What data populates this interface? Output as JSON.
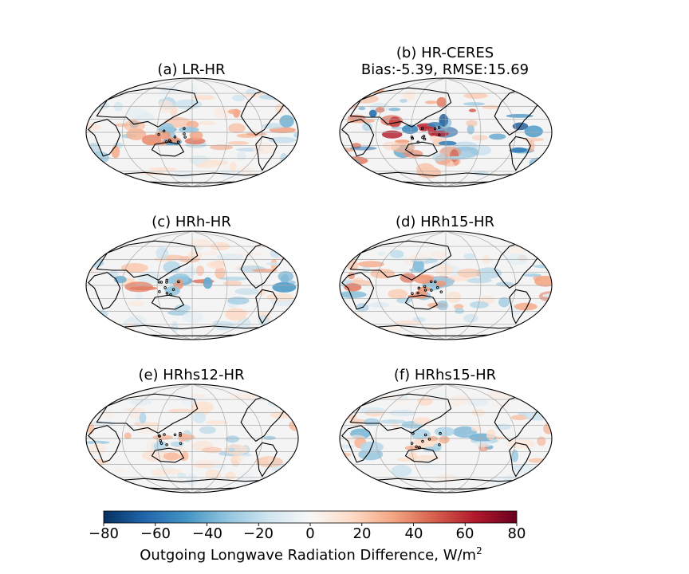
{
  "panels": [
    {
      "title": "(a) LR-HR",
      "subtitle": "",
      "seed": 11,
      "amp": 0.55
    },
    {
      "title": "(b) HR-CERES",
      "subtitle": "Bias:-5.39, RMSE:15.69",
      "seed": 23,
      "amp": 0.95
    },
    {
      "title": "(c) HRh-HR",
      "subtitle": "",
      "seed": 37,
      "amp": 0.55
    },
    {
      "title": "(d) HRh15-HR",
      "subtitle": "",
      "seed": 41,
      "amp": 0.55
    },
    {
      "title": "(e) HRhs12-HR",
      "subtitle": "",
      "seed": 53,
      "amp": 0.4
    },
    {
      "title": "(f) HRhs15-HR",
      "subtitle": "",
      "seed": 67,
      "amp": 0.45
    }
  ],
  "colorbar": {
    "label": "Outgoing Longwave Radiation Difference, W/m",
    "label_sup": "2",
    "min": -80,
    "max": 80,
    "ticks": [
      "−80",
      "−60",
      "−40",
      "−20",
      "0",
      "20",
      "40",
      "60",
      "80"
    ],
    "tick_values": [
      -80,
      -60,
      -40,
      -20,
      0,
      20,
      40,
      60,
      80
    ],
    "colormap": "RdBu_r"
  }
}
